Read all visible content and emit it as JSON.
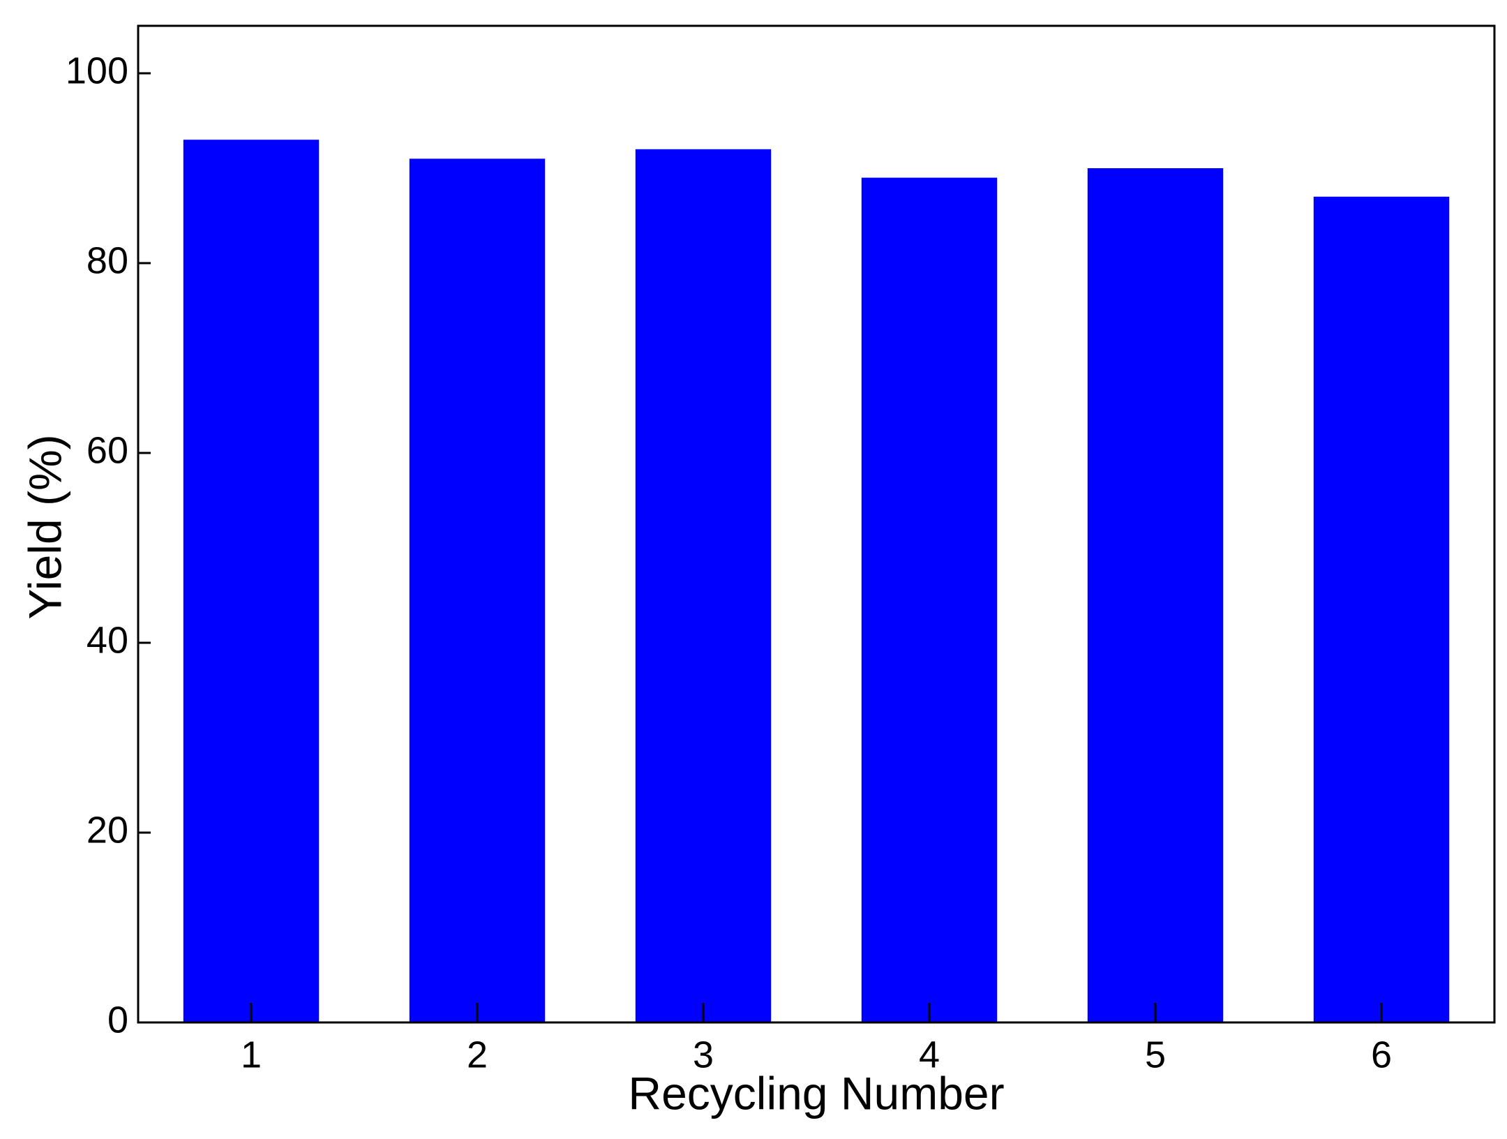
{
  "chart_data": {
    "type": "bar",
    "x_label": "Recycling Number",
    "y_label": "Yield (%)",
    "categories": [
      "1",
      "2",
      "3",
      "4",
      "5",
      "6"
    ],
    "values": [
      93,
      91,
      92,
      89,
      90,
      87
    ],
    "color": "#0000ff",
    "ylim": [
      0,
      105
    ],
    "yticks": [
      0,
      20,
      40,
      60,
      80,
      100
    ],
    "grid": false
  }
}
